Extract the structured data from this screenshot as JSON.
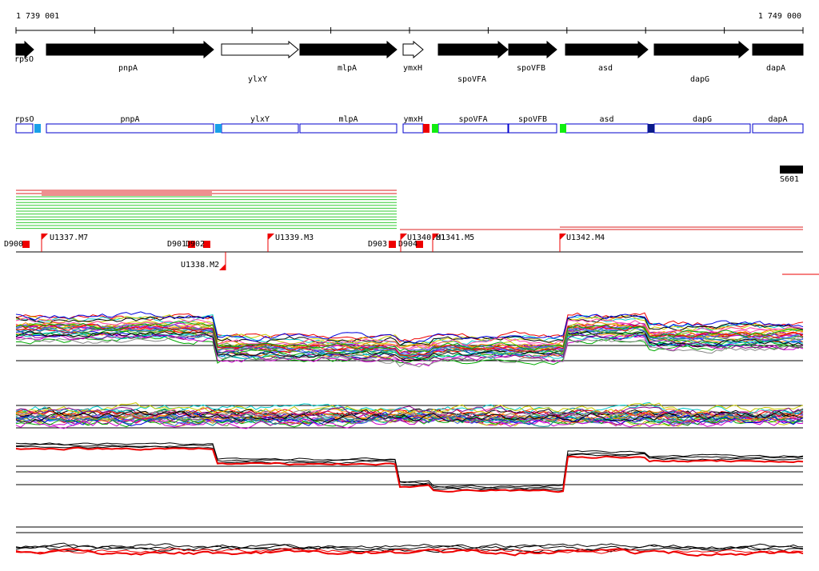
{
  "ruler": {
    "start": "1 739 001",
    "end": "1 749 000"
  },
  "genes": [
    "rpsO",
    "pnpA",
    "ylxY",
    "mlpA",
    "ymxH",
    "spoVFA",
    "spoVFB",
    "asd",
    "dapG",
    "dapA"
  ],
  "boxes": [
    "rpsO",
    "pnpA",
    "ylxY",
    "mlpA",
    "ymxH",
    "spoVFA",
    "spoVFB",
    "asd",
    "dapG",
    "dapA"
  ],
  "track": {
    "label": "S601"
  },
  "markers": [
    "D900",
    "U1337.M7",
    "D901",
    "D902",
    "U1338.M2",
    "U1339.M3",
    "D903",
    "D904",
    "U1340.M1",
    "U1341.M5",
    "U1342.M4"
  ]
}
